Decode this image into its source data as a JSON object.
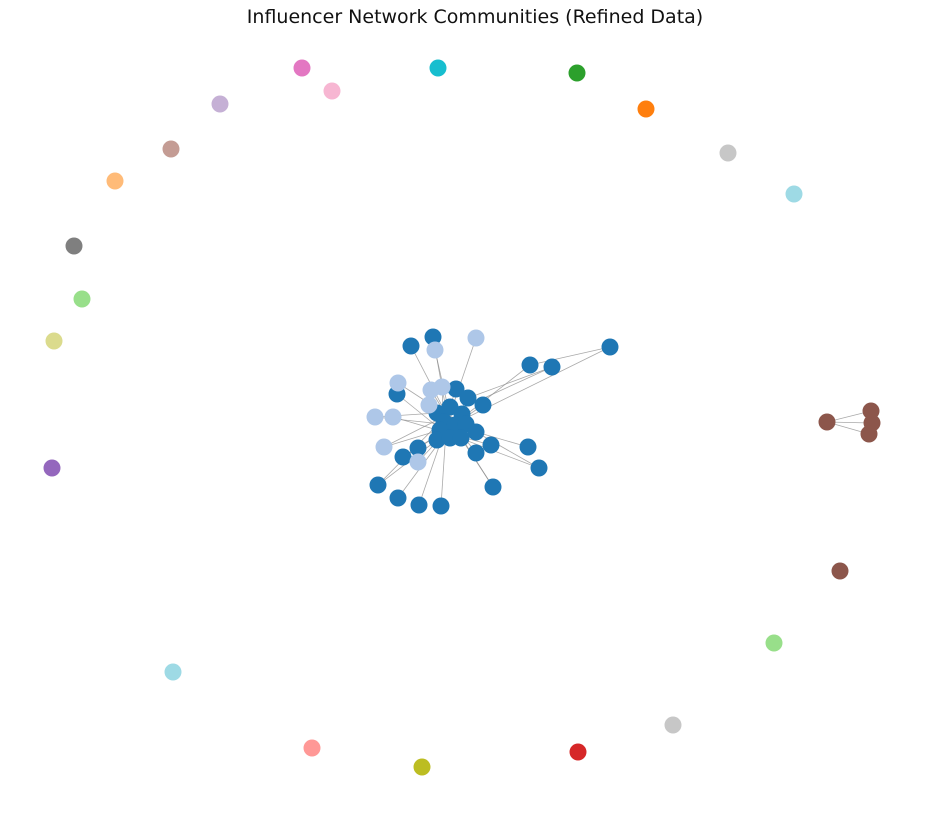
{
  "title": "Influencer Network Communities (Refined Data)",
  "community_colors": {
    "blue": "#1f77b4",
    "light-blue": "#aec7e8",
    "brown": "#8c564b",
    "pink": "#e377c2",
    "light-pink": "#f7b6d2",
    "cyan": "#17becf",
    "light-cyan": "#9edae5",
    "green": "#2ca02c",
    "light-green": "#98df8a",
    "orange": "#ff7f0e",
    "light-orange": "#ffbb78",
    "gray": "#7f7f7f",
    "light-gray": "#c7c7c7",
    "lavender": "#c5b0d5",
    "tan": "#c49c94",
    "olive-light": "#dbdb8d",
    "olive": "#bcbd22",
    "purple": "#9467bd",
    "red": "#d62728",
    "salmon": "#ff9896"
  }
}
